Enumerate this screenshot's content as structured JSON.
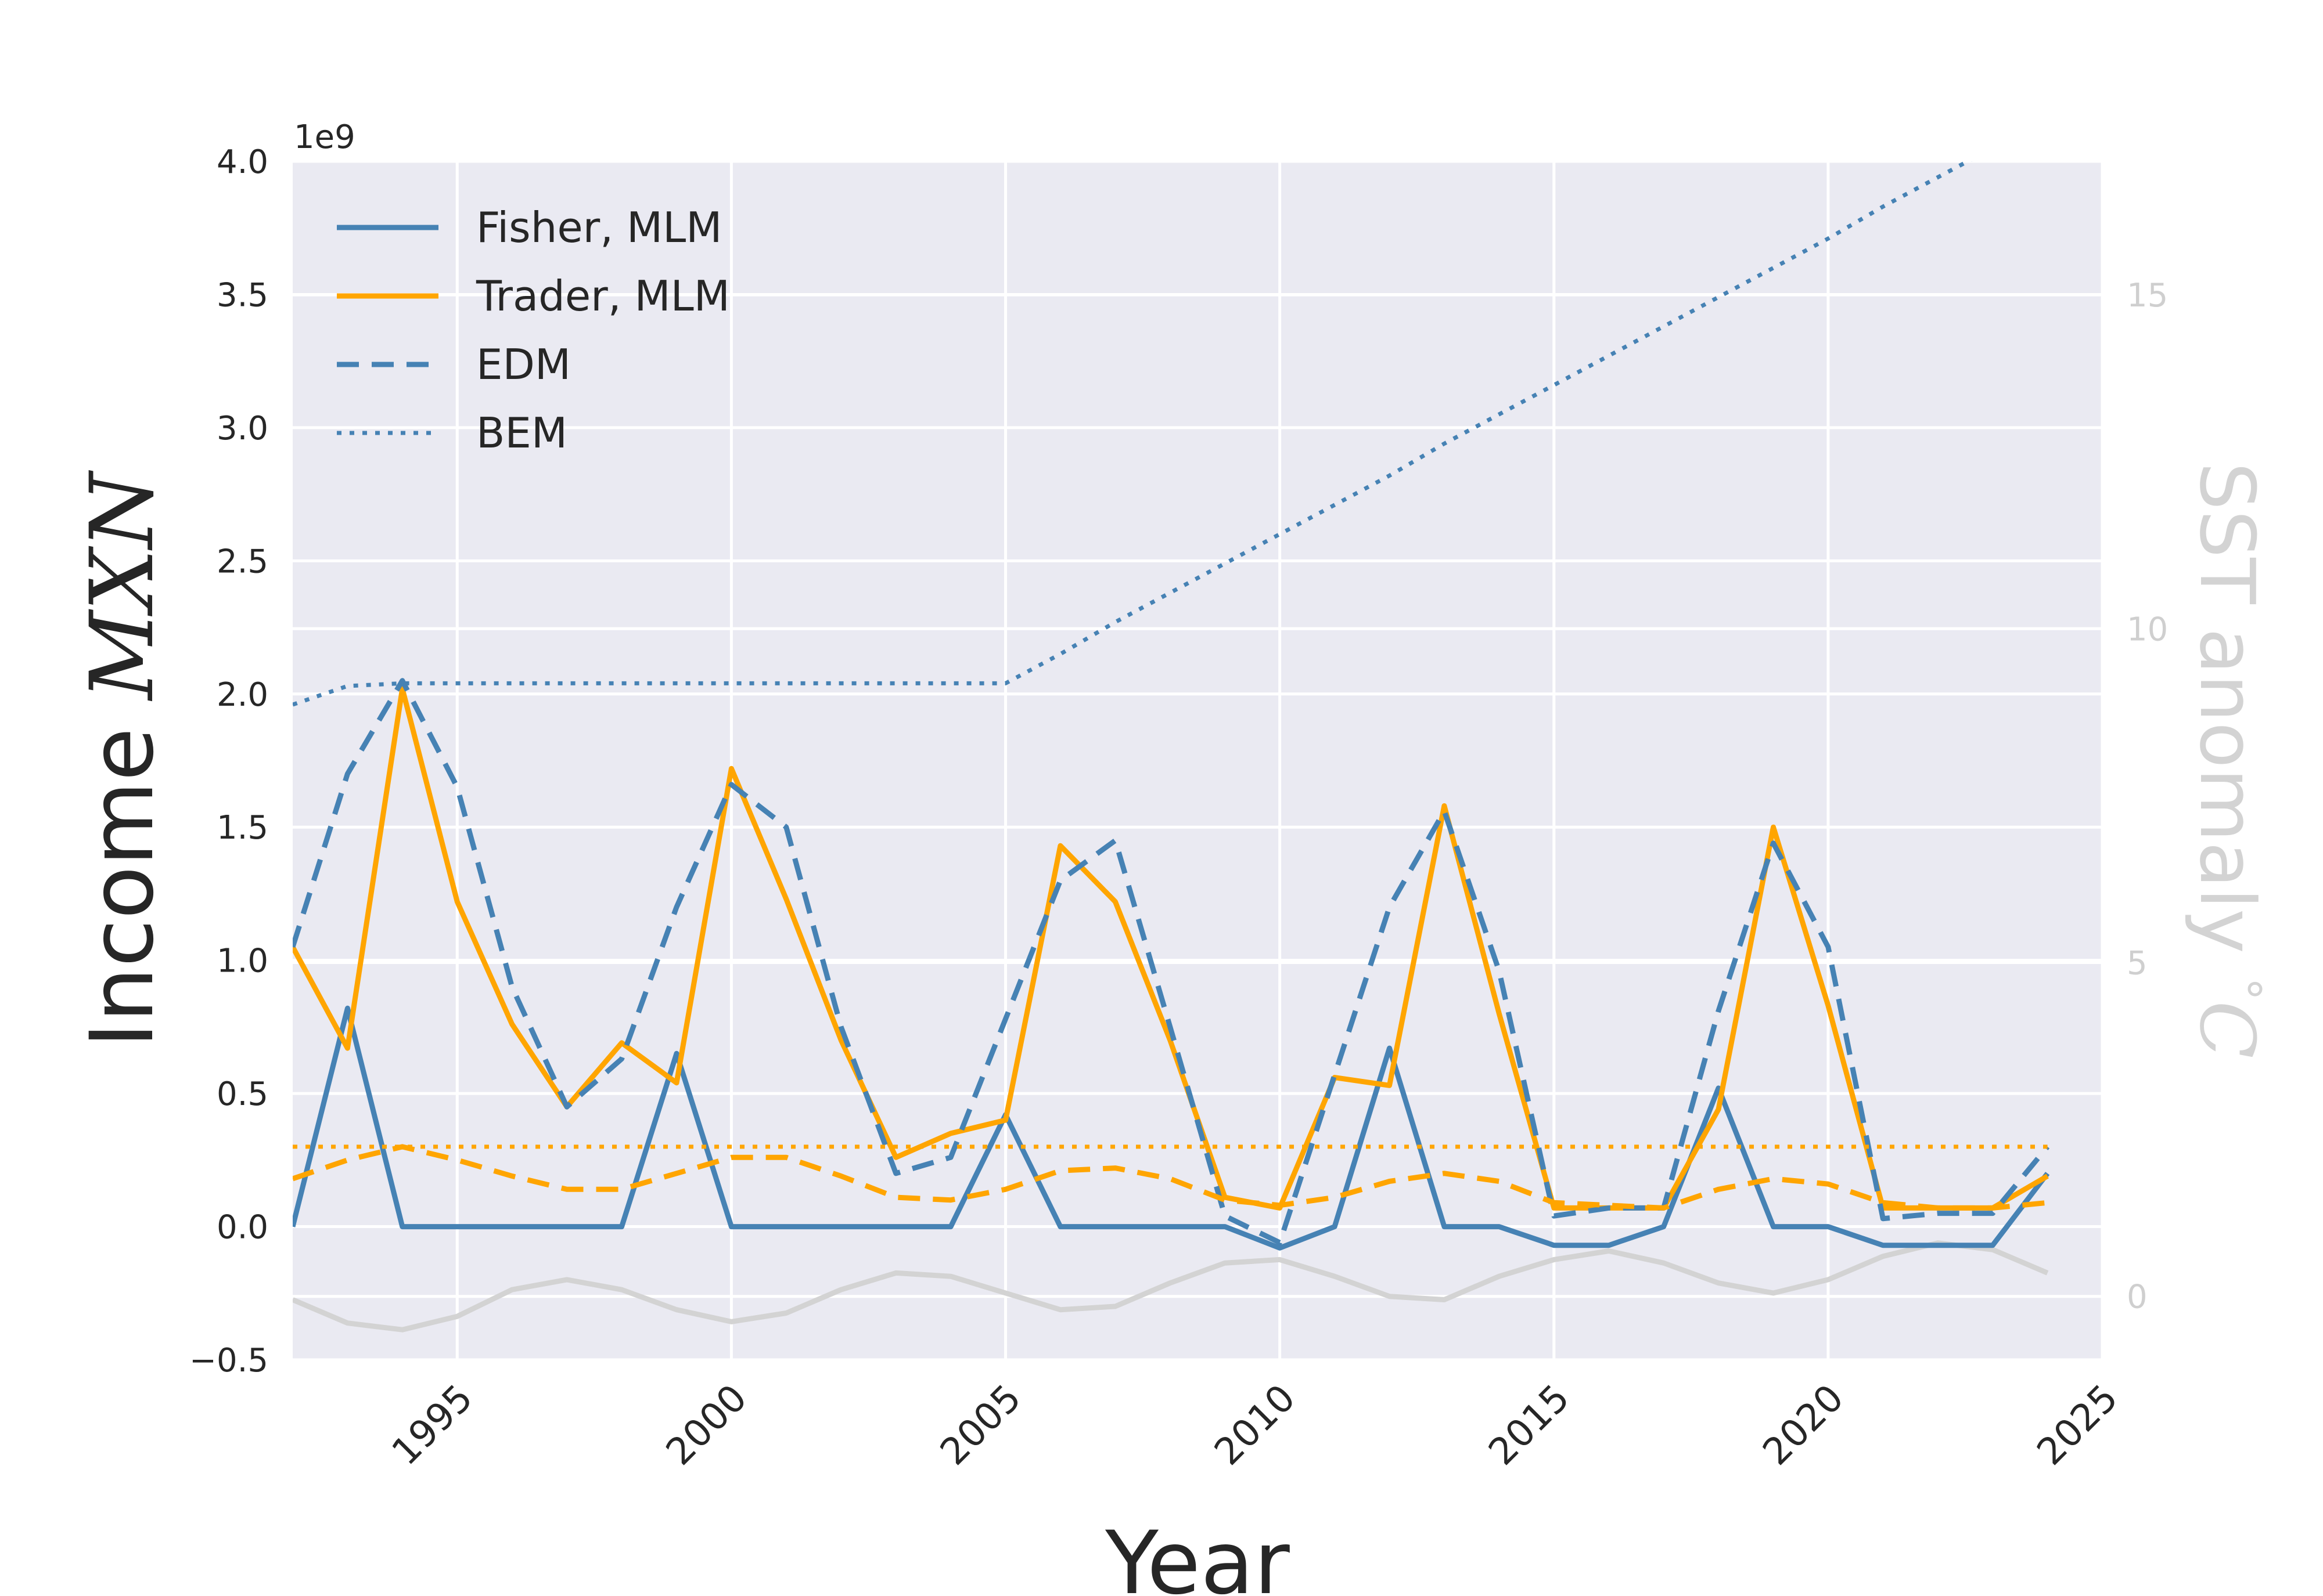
{
  "chart_data": {
    "type": "line",
    "xlabel": "Year",
    "ylabel": "Income MXN",
    "y2label": "SST anomaly °C",
    "y_offset_label": "1e9",
    "xlim": [
      1992,
      2025
    ],
    "ylim": [
      -0.5,
      4.0
    ],
    "y2lim": [
      -0.95,
      17.0
    ],
    "x_ticks": [
      "1995",
      "2000",
      "2005",
      "2010",
      "2015",
      "2020",
      "2025"
    ],
    "y_ticks": [
      "−0.5",
      "0.0",
      "0.5",
      "1.0",
      "1.5",
      "2.0",
      "2.5",
      "3.0",
      "3.5",
      "4.0"
    ],
    "y2_ticks": [
      "0",
      "5",
      "10",
      "15"
    ],
    "grid": true,
    "legend_position": "upper-left",
    "x": [
      1992,
      1993,
      1994,
      1995,
      1996,
      1997,
      1998,
      1999,
      2000,
      2001,
      2002,
      2003,
      2004,
      2005,
      2006,
      2007,
      2008,
      2009,
      2010,
      2011,
      2012,
      2013,
      2014,
      2015,
      2016,
      2017,
      2018,
      2019,
      2020,
      2021,
      2022,
      2023,
      2024
    ],
    "series": [
      {
        "name": "Fisher, MLM",
        "axis": "left",
        "color": "#4682b4",
        "style": "solid",
        "values": [
          0.0,
          0.82,
          0.0,
          0.0,
          0.0,
          0.0,
          0.0,
          0.65,
          0.0,
          0.0,
          0.0,
          0.0,
          0.0,
          0.42,
          0.0,
          0.0,
          0.0,
          0.0,
          -0.08,
          0.0,
          0.67,
          0.0,
          0.0,
          -0.07,
          -0.07,
          0.0,
          0.52,
          0.0,
          0.0,
          -0.07,
          -0.07,
          -0.07,
          0.2
        ]
      },
      {
        "name": "Trader, MLM",
        "axis": "left",
        "color": "#ffa500",
        "style": "solid",
        "values": [
          1.05,
          0.67,
          2.02,
          1.22,
          0.76,
          0.45,
          0.69,
          0.54,
          1.72,
          1.23,
          0.7,
          0.26,
          0.35,
          0.4,
          1.43,
          1.22,
          0.7,
          0.11,
          0.07,
          0.56,
          0.53,
          1.58,
          0.8,
          0.07,
          0.07,
          0.07,
          0.44,
          1.5,
          0.83,
          0.07,
          0.07,
          0.07,
          0.19
        ]
      },
      {
        "name": "EDM",
        "axis": "left",
        "color": "#4682b4",
        "style": "dashed",
        "values": [
          1.05,
          1.7,
          2.05,
          1.65,
          0.9,
          0.45,
          0.63,
          1.2,
          1.66,
          1.5,
          0.75,
          0.2,
          0.26,
          0.78,
          1.3,
          1.45,
          0.75,
          0.04,
          -0.06,
          0.57,
          1.2,
          1.56,
          0.96,
          0.04,
          0.07,
          0.07,
          0.81,
          1.44,
          1.05,
          0.03,
          0.05,
          0.05,
          0.3
        ]
      },
      {
        "name": "BEM",
        "axis": "left",
        "color": "#4682b4",
        "style": "dotted",
        "values": [
          1.96,
          2.03,
          2.04,
          2.04,
          2.04,
          2.04,
          2.04,
          2.04,
          2.04,
          2.04,
          2.04,
          2.04,
          2.04,
          2.04,
          2.15,
          2.27,
          2.38,
          2.49,
          2.6,
          2.71,
          2.82,
          2.94,
          3.05,
          3.16,
          3.27,
          3.38,
          3.49,
          3.6,
          3.71,
          3.83,
          3.94,
          4.05,
          4.15
        ]
      },
      {
        "axis": "left",
        "color": "#ffa500",
        "style": "dashed",
        "values": [
          0.18,
          0.25,
          0.3,
          0.25,
          0.19,
          0.14,
          0.14,
          0.2,
          0.26,
          0.26,
          0.19,
          0.11,
          0.1,
          0.14,
          0.21,
          0.22,
          0.18,
          0.1,
          0.08,
          0.11,
          0.17,
          0.2,
          0.17,
          0.09,
          0.08,
          0.07,
          0.14,
          0.18,
          0.16,
          0.09,
          0.07,
          0.07,
          0.09
        ]
      },
      {
        "axis": "left",
        "color": "#ffa500",
        "style": "dotted",
        "values": [
          0.3,
          0.3,
          0.3,
          0.3,
          0.3,
          0.3,
          0.3,
          0.3,
          0.3,
          0.3,
          0.3,
          0.3,
          0.3,
          0.3,
          0.3,
          0.3,
          0.3,
          0.3,
          0.3,
          0.3,
          0.3,
          0.3,
          0.3,
          0.3,
          0.3,
          0.3,
          0.3,
          0.3,
          0.3,
          0.3,
          0.3,
          0.3,
          0.3
        ]
      },
      {
        "axis": "right",
        "color": "#d3d3d3",
        "style": "solid",
        "values": [
          -0.05,
          -0.4,
          -0.5,
          -0.3,
          0.1,
          0.25,
          0.1,
          -0.2,
          -0.38,
          -0.25,
          0.1,
          0.35,
          0.3,
          0.05,
          -0.2,
          -0.15,
          0.2,
          0.5,
          0.55,
          0.3,
          0.0,
          -0.05,
          0.3,
          0.55,
          0.68,
          0.5,
          0.2,
          0.05,
          0.25,
          0.6,
          0.8,
          0.7,
          0.35
        ]
      }
    ]
  }
}
